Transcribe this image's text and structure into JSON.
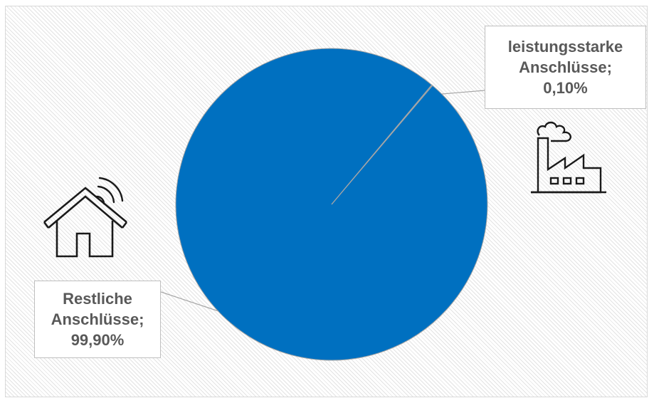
{
  "chart_data": {
    "type": "pie",
    "title": "",
    "slices": [
      {
        "label_lines": [
          "leistungsstarke",
          "Anschlüsse;",
          "0,10%"
        ],
        "value": 0.1,
        "color": "#0070c0"
      },
      {
        "label_lines": [
          "Restliche",
          "Anschlüsse;",
          "99,90%"
        ],
        "value": 99.9,
        "color": "#0070c0"
      }
    ],
    "legend": "none",
    "data_labels": "callouts"
  },
  "icons": {
    "industrial": "factory-icon",
    "residential": "smart-home-icon"
  },
  "colors": {
    "pie_fill": "#0070c0",
    "slice_separator": "#a6a6a6",
    "label_text": "#595959",
    "label_border": "#bfbfbf"
  }
}
